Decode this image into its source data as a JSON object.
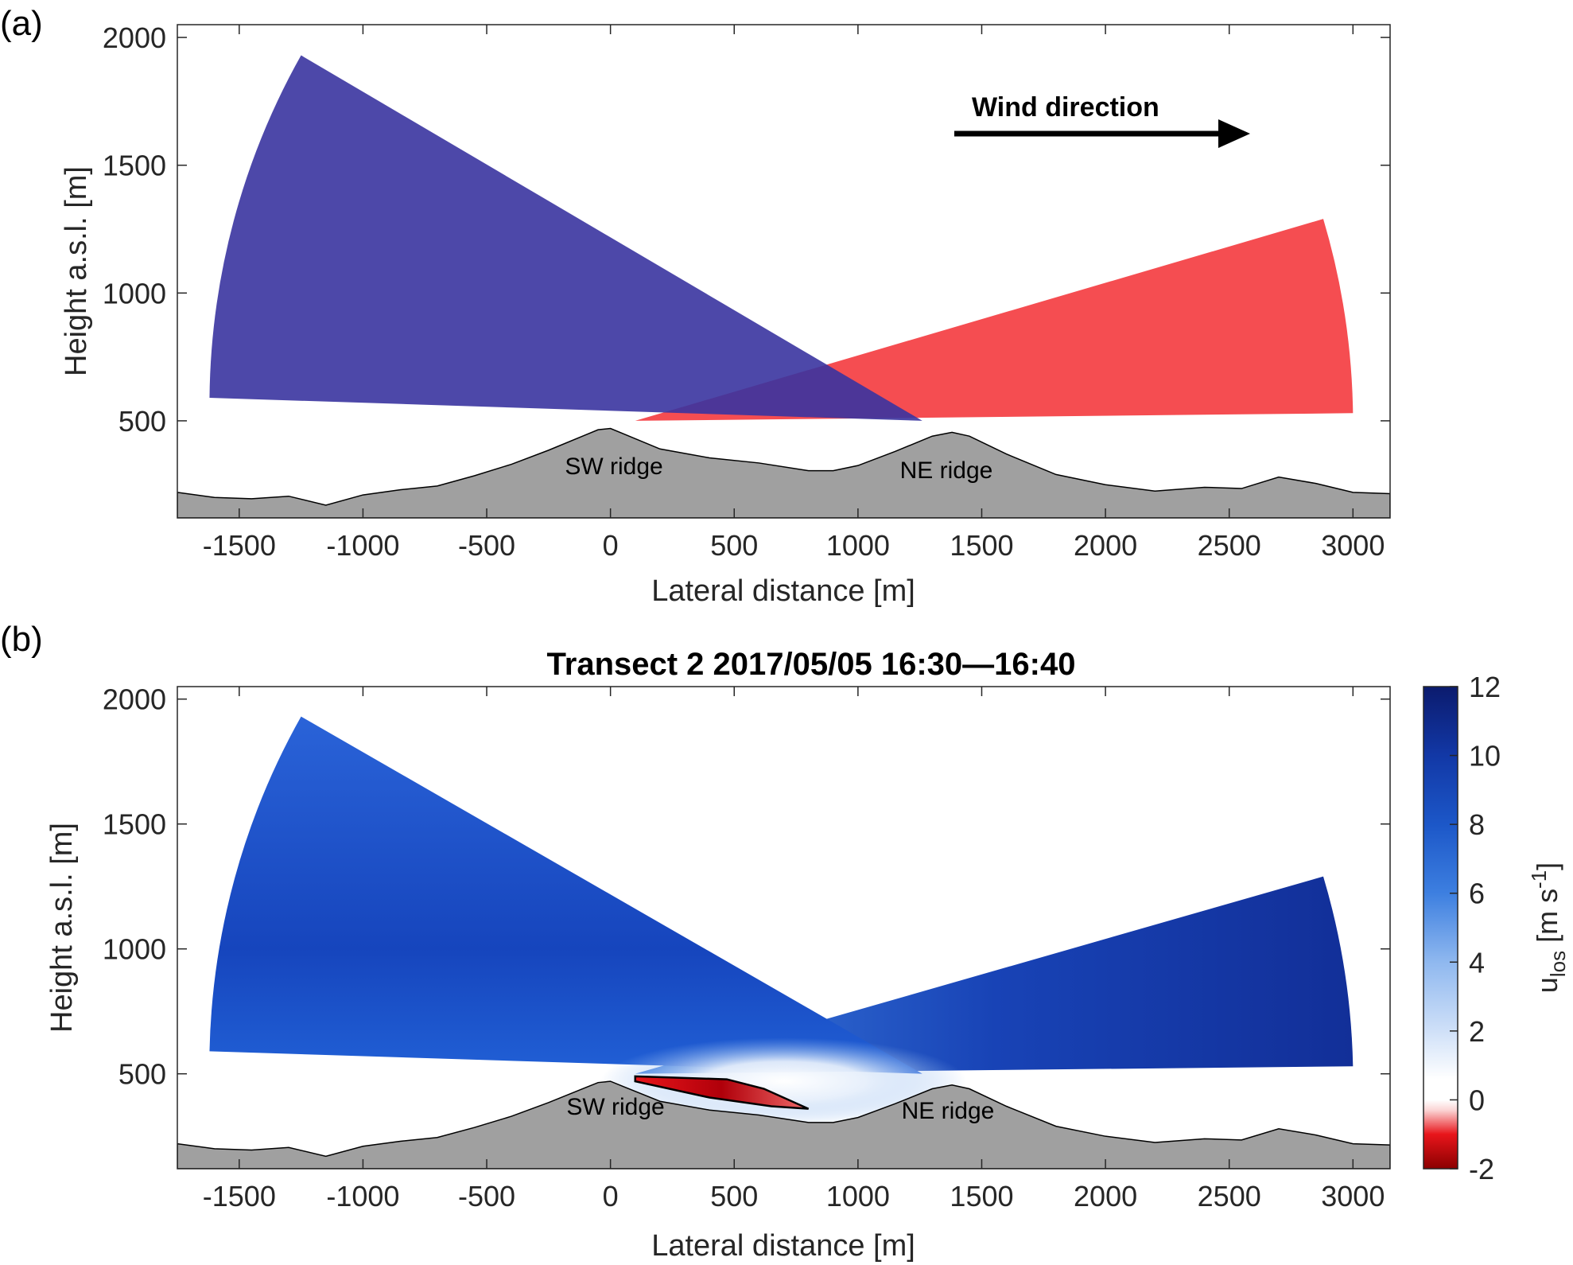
{
  "panels": [
    {
      "label": "(a)",
      "annotation": "Wind direction",
      "ridges": [
        "SW ridge",
        "NE ridge"
      ]
    },
    {
      "label": "(b)",
      "title": "Transect 2   2017/05/05 16:30—16:40",
      "ridges": [
        "SW ridge",
        "NE ridge"
      ],
      "colorbar": {
        "label_main": "u",
        "label_sub": "los",
        "label_unit_open": " [m s",
        "label_unit_sup": "-1",
        "label_unit_close": "]",
        "ticks": [
          12,
          10,
          8,
          6,
          4,
          2,
          0,
          -2
        ],
        "range": [
          -2,
          12
        ]
      }
    }
  ],
  "chart_data": [
    {
      "type": "area",
      "panel": "(a)",
      "xlabel": "Lateral distance [m]",
      "ylabel": "Height a.s.l. [m]",
      "xlim": [
        -1750,
        3150
      ],
      "ylim": [
        120,
        2050
      ],
      "xticks": [
        -1500,
        -1000,
        -500,
        0,
        500,
        1000,
        1500,
        2000,
        2500,
        3000
      ],
      "yticks": [
        500,
        1000,
        1500,
        2000
      ],
      "scan_sectors": [
        {
          "origin_x": 1260,
          "origin_y": 500,
          "color": "#3a34a0",
          "arc_x": [
            -1620,
            -1250
          ],
          "arc_y": [
            590,
            1930
          ]
        },
        {
          "origin_x": 100,
          "origin_y": 500,
          "color": "#f43a3e",
          "arc_x": [
            2880,
            3000
          ],
          "arc_y": [
            1290,
            530
          ]
        }
      ],
      "annotation": {
        "text": "Wind direction",
        "arrow": "left-to-right"
      },
      "terrain": {
        "x": [
          -1750,
          -1600,
          -1450,
          -1300,
          -1150,
          -1000,
          -850,
          -700,
          -550,
          -400,
          -250,
          -100,
          -50,
          0,
          50,
          200,
          400,
          600,
          800,
          900,
          1000,
          1150,
          1300,
          1380,
          1450,
          1600,
          1800,
          2000,
          2200,
          2400,
          2550,
          2700,
          2850,
          3000,
          3150
        ],
        "y": [
          220,
          200,
          195,
          205,
          170,
          210,
          230,
          245,
          285,
          330,
          385,
          445,
          465,
          470,
          450,
          390,
          355,
          335,
          305,
          305,
          325,
          380,
          440,
          455,
          440,
          370,
          290,
          250,
          225,
          240,
          235,
          280,
          255,
          220,
          215
        ]
      }
    },
    {
      "type": "heatmap",
      "panel": "(b)",
      "title": "Transect 2   2017/05/05 16:30—16:40",
      "xlabel": "Lateral distance [m]",
      "ylabel": "Height a.s.l. [m]",
      "xlim": [
        -1750,
        3150
      ],
      "ylim": [
        120,
        2050
      ],
      "xticks": [
        -1500,
        -1000,
        -500,
        0,
        500,
        1000,
        1500,
        2000,
        2500,
        3000
      ],
      "yticks": [
        500,
        1000,
        1500,
        2000
      ],
      "colorbar_label": "u_los [m s^-1]",
      "colorbar_range": [
        -2,
        12
      ],
      "colormap": [
        {
          "value": -2,
          "color": "#8b0000"
        },
        {
          "value": -1,
          "color": "#e8151b"
        },
        {
          "value": -0.3,
          "color": "#fbd4d4"
        },
        {
          "value": 0,
          "color": "#ffffff"
        },
        {
          "value": 0.6,
          "color": "#ffffff"
        },
        {
          "value": 2,
          "color": "#cfe0f8"
        },
        {
          "value": 4,
          "color": "#8fb8ef"
        },
        {
          "value": 6,
          "color": "#3d7fe0"
        },
        {
          "value": 8,
          "color": "#1c57c8"
        },
        {
          "value": 10,
          "color": "#1238a6"
        },
        {
          "value": 12,
          "color": "#0b1b6e"
        }
      ],
      "features": {
        "reverse_flow_region_x": [
          100,
          800
        ],
        "reverse_flow_min_speed": -2,
        "jet_core_speed": 11
      }
    }
  ]
}
